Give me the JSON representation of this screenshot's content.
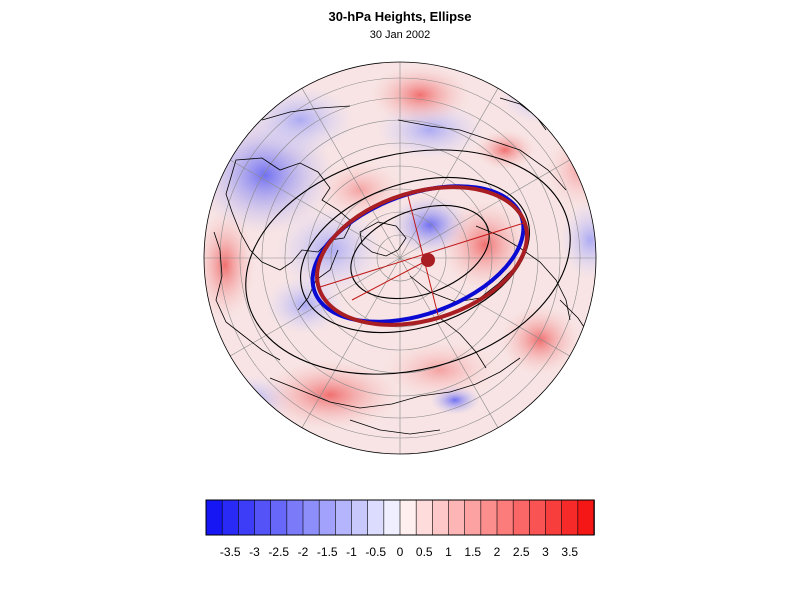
{
  "figure": {
    "title": "30-hPa Heights, Ellipse",
    "subtitle": "30 Jan 2002"
  },
  "map": {
    "projection": "north polar orthographic",
    "field": "30-hPa height anomaly",
    "colors": {
      "background": "#ffffff",
      "land_outline": "#000000",
      "graticule": "#8a8a8a",
      "height_contours": "#000000",
      "ellipse_blue": "#0a0ad2",
      "ellipse_red": "#a81e22",
      "axes": "#c01818"
    }
  },
  "colorbar": {
    "tick_labels": [
      "-3.5",
      "-3",
      "-2.5",
      "-2",
      "-1.5",
      "-1",
      "-0.5",
      "0",
      "0.5",
      "1",
      "1.5",
      "2",
      "2.5",
      "3",
      "3.5"
    ],
    "tick_values": [
      -3.5,
      -3,
      -2.5,
      -2,
      -1.5,
      -1,
      -0.5,
      0,
      0.5,
      1,
      1.5,
      2,
      2.5,
      3,
      3.5
    ],
    "range": [
      -4,
      4
    ],
    "bins": 24,
    "colors": [
      "#1616f5",
      "#2a2af6",
      "#3d3df7",
      "#5353f8",
      "#6767f9",
      "#7b7bfa",
      "#8e8efb",
      "#a2a2fc",
      "#b5b5fd",
      "#c8c8fd",
      "#dcdcfe",
      "#efefff",
      "#ffefef",
      "#ffdcdc",
      "#fec8c8",
      "#feb5b5",
      "#fda2a2",
      "#fd8e8e",
      "#fc7b7b",
      "#fb6767",
      "#fa5353",
      "#f83d3d",
      "#f72a2a",
      "#f51616"
    ]
  }
}
